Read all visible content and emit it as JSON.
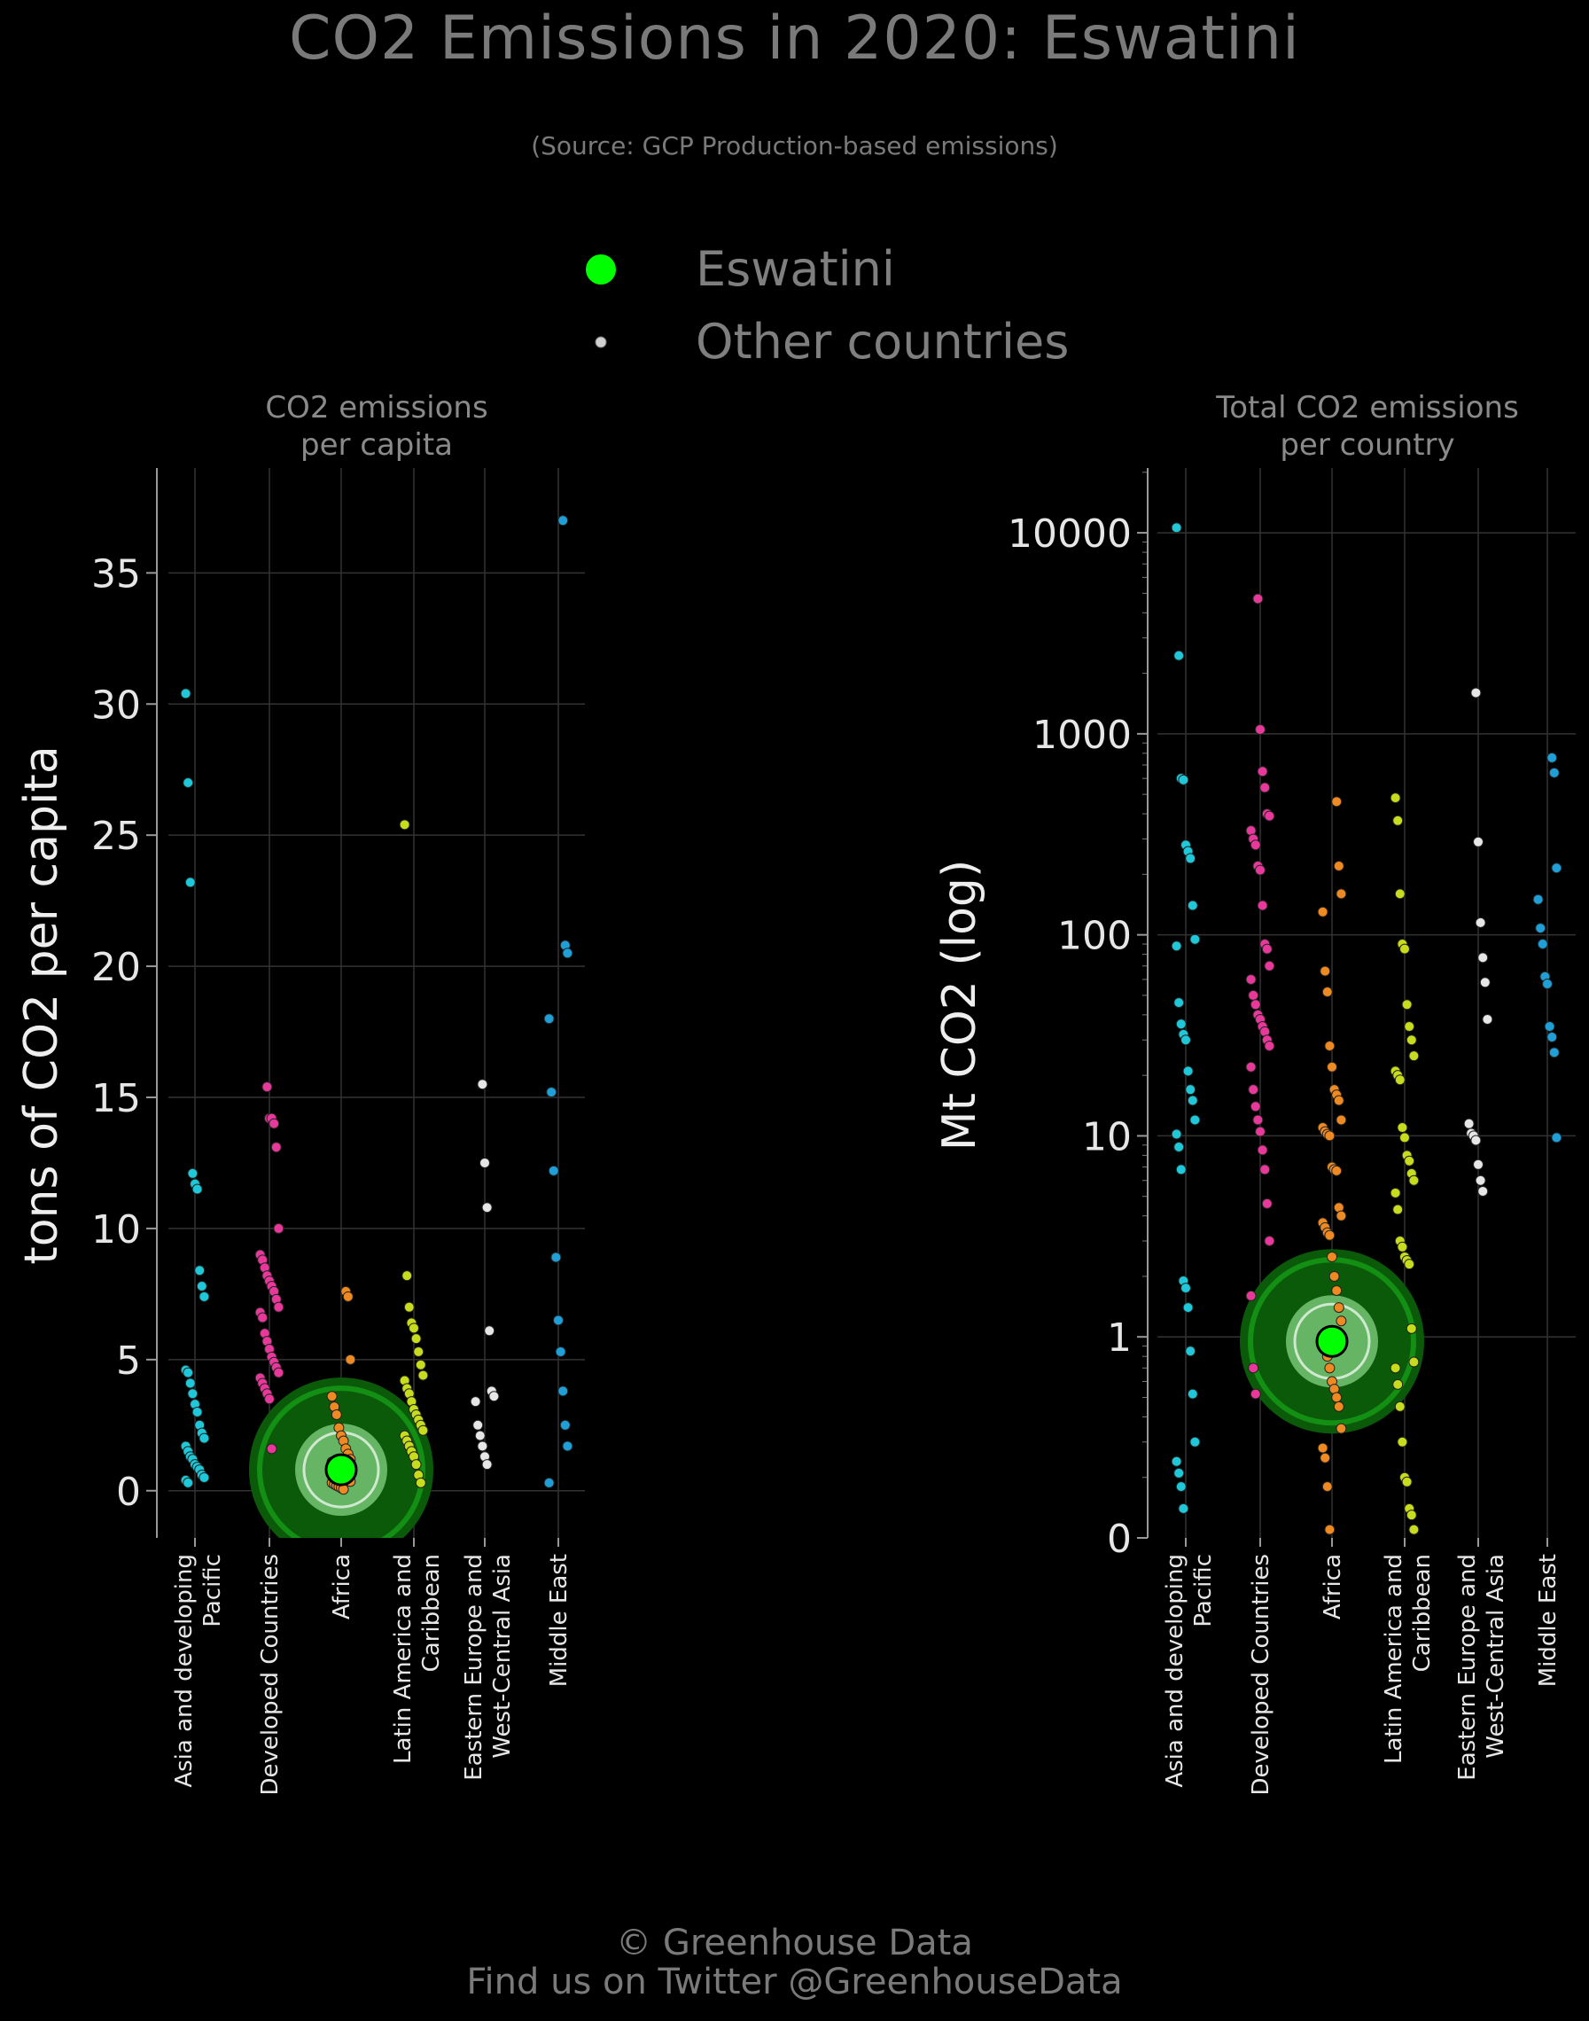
{
  "title": "CO2 Emissions in 2020: Eswatini",
  "subtitle": "(Source: GCP Production-based emissions)",
  "legend": [
    {
      "label": "Eswatini",
      "color": "#00ff00"
    },
    {
      "label": "Other countries",
      "color": "#d0d0d0"
    }
  ],
  "footer": {
    "line1": "© Greenhouse Data",
    "line2": "Find us on Twitter @GreenhouseData"
  },
  "colors": {
    "Asia and developing Pacific": "#1fc8d8",
    "Developed Countries": "#e8399a",
    "Africa": "#ef8a23",
    "Latin America and Caribbean": "#c6dc1c",
    "Eastern Europe and West-Central Asia": "#e6e6e6",
    "Middle East": "#1f9fd8",
    "highlight": "#00ff00"
  },
  "chart_data": [
    {
      "type": "scatter",
      "title": "CO2 emissions\nper capita",
      "ylabel": "tons of CO2 per capita",
      "ylim": [
        -1.8,
        39
      ],
      "yticks": [
        0,
        5,
        10,
        15,
        20,
        25,
        30,
        35
      ],
      "categories": [
        "Asia and developing\nPacific",
        "Developed Countries",
        "Africa",
        "Latin America and\nCaribbean",
        "Eastern Europe and\nWest-Central Asia",
        "Middle East"
      ],
      "highlight": {
        "name": "Eswatini",
        "category": "Africa",
        "value": 0.8
      },
      "series": [
        {
          "category": "Asia and developing\nPacific",
          "values": [
            30.4,
            27.0,
            23.2,
            12.1,
            11.7,
            11.5,
            8.4,
            7.8,
            7.4,
            4.6,
            4.5,
            4.1,
            3.7,
            3.3,
            3.0,
            2.5,
            2.2,
            2.0,
            1.7,
            1.5,
            1.3,
            1.2,
            1.0,
            0.9,
            0.8,
            0.6,
            0.5,
            0.4,
            0.3
          ]
        },
        {
          "category": "Developed Countries",
          "values": [
            15.4,
            14.2,
            14.2,
            14.0,
            13.1,
            10.0,
            9.0,
            8.8,
            8.5,
            8.2,
            8.0,
            7.8,
            7.6,
            7.3,
            7.0,
            6.8,
            6.6,
            6.0,
            5.7,
            5.4,
            5.1,
            4.9,
            4.7,
            4.5,
            4.3,
            4.1,
            3.9,
            3.7,
            3.5,
            1.6
          ]
        },
        {
          "category": "Africa",
          "values": [
            7.6,
            7.4,
            5.0,
            3.6,
            3.2,
            2.9,
            2.4,
            2.1,
            1.9,
            1.6,
            1.4,
            1.2,
            1.1,
            1.0,
            0.9,
            0.8,
            0.7,
            0.6,
            0.5,
            0.4,
            0.35,
            0.3,
            0.25,
            0.2,
            0.15,
            0.1,
            0.05
          ]
        },
        {
          "category": "Latin America and\nCaribbean",
          "values": [
            25.4,
            8.2,
            7.0,
            6.4,
            6.2,
            5.8,
            5.3,
            4.8,
            4.4,
            4.2,
            3.9,
            3.7,
            3.4,
            3.1,
            2.9,
            2.7,
            2.5,
            2.3,
            2.1,
            1.9,
            1.7,
            1.5,
            1.3,
            1.0,
            0.6,
            0.3
          ]
        },
        {
          "category": "Eastern Europe and\nWest-Central Asia",
          "values": [
            15.5,
            12.5,
            10.8,
            6.1,
            3.8,
            3.6,
            3.4,
            2.5,
            2.1,
            1.7,
            1.3,
            1.0
          ]
        },
        {
          "category": "Middle East",
          "values": [
            37.0,
            20.8,
            20.5,
            18.0,
            15.2,
            12.2,
            8.9,
            6.5,
            5.3,
            3.8,
            2.5,
            1.7,
            0.3
          ]
        }
      ]
    },
    {
      "type": "scatter",
      "title": "Total CO2 emissions\nper country",
      "ylabel": "Mt CO2 (log)",
      "yscale": "log",
      "yticks": [
        0,
        1,
        10,
        100,
        1000,
        10000
      ],
      "categories": [
        "Asia and developing\nPacific",
        "Developed Countries",
        "Africa",
        "Latin America and\nCaribbean",
        "Eastern Europe and\nWest-Central Asia",
        "Middle East"
      ],
      "highlight": {
        "name": "Eswatini",
        "category": "Africa",
        "value": 0.95
      },
      "series": [
        {
          "category": "Asia and developing\nPacific",
          "values": [
            10600,
            2450,
            600,
            590,
            280,
            260,
            240,
            140,
            95,
            88,
            46,
            36,
            32,
            30,
            21,
            17,
            15,
            12,
            10.2,
            8.8,
            6.8,
            1.9,
            1.75,
            1.4,
            0.85,
            0.52,
            0.3,
            0.24,
            0.21,
            0.18,
            0.14
          ]
        },
        {
          "category": "Developed Countries",
          "values": [
            4700,
            1050,
            650,
            540,
            400,
            390,
            330,
            300,
            280,
            220,
            210,
            140,
            90,
            85,
            70,
            60,
            50,
            45,
            40,
            38,
            35,
            33,
            30,
            28,
            22,
            17,
            14,
            12,
            10.5,
            8.5,
            6.8,
            4.6,
            3.0,
            1.6,
            0.7,
            0.52
          ]
        },
        {
          "category": "Africa",
          "values": [
            460,
            220,
            160,
            130,
            66,
            52,
            28,
            22,
            17,
            16,
            15,
            12,
            11,
            10.5,
            10.2,
            10.0,
            7.0,
            6.8,
            6.7,
            4.4,
            4.0,
            3.7,
            3.5,
            3.3,
            3.2,
            2.5,
            2.0,
            1.7,
            1.4,
            1.2,
            1.0,
            0.9,
            0.8,
            0.7,
            0.6,
            0.55,
            0.5,
            0.45,
            0.35,
            0.28,
            0.25,
            0.18,
            0.11
          ]
        },
        {
          "category": "Latin America and\nCaribbean",
          "values": [
            480,
            370,
            160,
            90,
            85,
            45,
            35,
            30,
            25,
            21,
            20,
            19,
            11,
            9.8,
            8.0,
            7.5,
            6.5,
            6.0,
            5.2,
            4.3,
            3.0,
            2.8,
            2.5,
            2.4,
            2.3,
            1.1,
            0.75,
            0.7,
            0.58,
            0.45,
            0.3,
            0.2,
            0.19,
            0.14,
            0.13,
            0.11
          ]
        },
        {
          "category": "Eastern Europe and\nWest-Central Asia",
          "values": [
            1600,
            290,
            115,
            77,
            58,
            38,
            11.5,
            10.3,
            10.0,
            9.5,
            7.2,
            6.0,
            5.3
          ]
        },
        {
          "category": "Middle East",
          "values": [
            760,
            640,
            215,
            150,
            108,
            90,
            62,
            57,
            35,
            31,
            26,
            9.8
          ]
        }
      ]
    }
  ]
}
